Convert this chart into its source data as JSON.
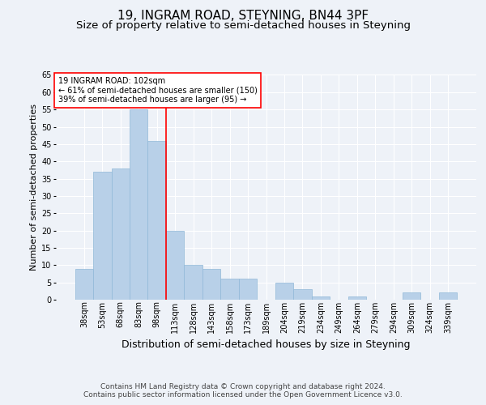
{
  "title": "19, INGRAM ROAD, STEYNING, BN44 3PF",
  "subtitle": "Size of property relative to semi-detached houses in Steyning",
  "xlabel": "Distribution of semi-detached houses by size in Steyning",
  "ylabel": "Number of semi-detached properties",
  "categories": [
    "38sqm",
    "53sqm",
    "68sqm",
    "83sqm",
    "98sqm",
    "113sqm",
    "128sqm",
    "143sqm",
    "158sqm",
    "173sqm",
    "189sqm",
    "204sqm",
    "219sqm",
    "234sqm",
    "249sqm",
    "264sqm",
    "279sqm",
    "294sqm",
    "309sqm",
    "324sqm",
    "339sqm"
  ],
  "values": [
    9,
    37,
    38,
    55,
    46,
    20,
    10,
    9,
    6,
    6,
    0,
    5,
    3,
    1,
    0,
    1,
    0,
    0,
    2,
    0,
    2
  ],
  "bar_color": "#b8d0e8",
  "bar_edge_color": "#90b8d8",
  "vline_color": "red",
  "annotation_text": "19 INGRAM ROAD: 102sqm\n← 61% of semi-detached houses are smaller (150)\n39% of semi-detached houses are larger (95) →",
  "ylim": [
    0,
    65
  ],
  "yticks": [
    0,
    5,
    10,
    15,
    20,
    25,
    30,
    35,
    40,
    45,
    50,
    55,
    60,
    65
  ],
  "background_color": "#eef2f8",
  "plot_bg_color": "#eef2f8",
  "footer_line1": "Contains HM Land Registry data © Crown copyright and database right 2024.",
  "footer_line2": "Contains public sector information licensed under the Open Government Licence v3.0.",
  "title_fontsize": 11,
  "subtitle_fontsize": 9.5,
  "xlabel_fontsize": 9,
  "ylabel_fontsize": 8,
  "tick_fontsize": 7,
  "footer_fontsize": 6.5,
  "annotation_fontsize": 7
}
